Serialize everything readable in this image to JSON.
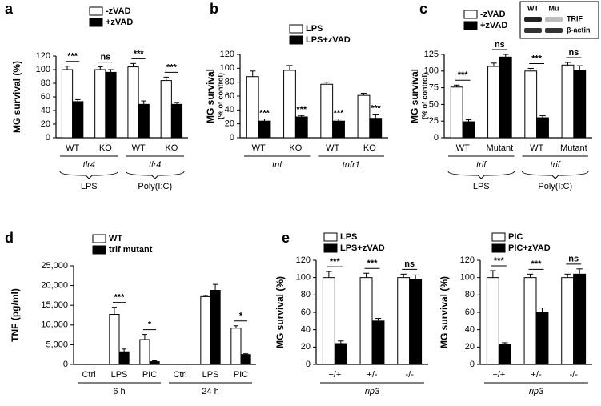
{
  "chart_data": [
    {
      "type": "bar",
      "panel": "a",
      "ylabel": "MG survival (%)",
      "ylim": [
        0,
        120
      ],
      "yticks": [
        0,
        20,
        40,
        60,
        80,
        100,
        120
      ],
      "groups": [
        {
          "name": "tlr4",
          "treatment": "LPS",
          "categories": [
            "WT",
            "KO"
          ]
        },
        {
          "name": "tlr4",
          "treatment": "Poly(I:C)",
          "categories": [
            "WT",
            "KO"
          ]
        }
      ],
      "group_italic": true,
      "series": [
        {
          "name": "-zVAD",
          "color": "#ffffff",
          "values": [
            100,
            100,
            104,
            84
          ],
          "errors": [
            5,
            4,
            5,
            5
          ]
        },
        {
          "name": "+zVAD",
          "color": "#000000",
          "values": [
            53,
            96,
            49,
            49
          ],
          "errors": [
            3,
            4,
            5,
            3
          ]
        }
      ],
      "significance": [
        "***",
        "ns",
        "***",
        "***"
      ],
      "significance_line": true
    },
    {
      "type": "bar",
      "panel": "b",
      "ylabel": "MG survival",
      "ylabel_note": "(% of control)",
      "ylim": [
        0,
        120
      ],
      "yticks": [
        0,
        20,
        40,
        60,
        80,
        100,
        120
      ],
      "groups": [
        {
          "name": "tnf",
          "categories": [
            "WT",
            "KO"
          ]
        },
        {
          "name": "tnfr1",
          "categories": [
            "WT",
            "KO"
          ]
        }
      ],
      "group_italic": true,
      "series": [
        {
          "name": "LPS",
          "color": "#ffffff",
          "values": [
            88,
            97,
            77,
            61
          ],
          "errors": [
            8,
            7,
            3,
            3
          ]
        },
        {
          "name": "LPS+zVAD",
          "color": "#000000",
          "values": [
            24,
            30,
            24,
            28
          ],
          "errors": [
            3,
            2,
            3,
            6
          ]
        }
      ],
      "significance": [
        "***",
        "***",
        "***",
        "***"
      ],
      "significance_line": false
    },
    {
      "type": "bar",
      "panel": "c",
      "ylabel": "MG survival",
      "ylabel_note": "(% of control)",
      "ylim": [
        0,
        125
      ],
      "yticks": [
        0,
        25,
        50,
        75,
        100,
        125
      ],
      "groups": [
        {
          "name": "trif",
          "treatment": "LPS",
          "categories": [
            "WT",
            "Mutant"
          ]
        },
        {
          "name": "trif",
          "treatment": "Poly(I:C)",
          "categories": [
            "WT",
            "Mutant"
          ]
        }
      ],
      "group_italic": true,
      "series": [
        {
          "name": "-zVAD",
          "color": "#ffffff",
          "values": [
            76,
            107,
            100,
            109
          ],
          "errors": [
            3,
            5,
            4,
            4
          ]
        },
        {
          "name": "+zVAD",
          "color": "#000000",
          "values": [
            24,
            121,
            30,
            101
          ],
          "errors": [
            3,
            4,
            3,
            7
          ]
        }
      ],
      "significance": [
        "***",
        "ns",
        "***",
        "ns"
      ],
      "significance_line": true,
      "inset": {
        "lanes": [
          "WT",
          "Mu"
        ],
        "rows": [
          "TRIF",
          "β-actin"
        ]
      }
    },
    {
      "type": "bar",
      "panel": "d",
      "ylabel": "TNF (pg/ml)",
      "ylim": [
        0,
        25000
      ],
      "yticks": [
        0,
        {
          "value": 5000,
          "label": "5,000"
        },
        {
          "value": 10000,
          "label": "10,000"
        },
        {
          "value": 15000,
          "label": "15,000"
        },
        {
          "value": 20000,
          "label": "20,000"
        },
        {
          "value": 25000,
          "label": "25,000"
        }
      ],
      "groups": [
        {
          "name": "6 h",
          "categories": [
            "Ctrl",
            "LPS",
            "PIC"
          ]
        },
        {
          "name": "24 h",
          "categories": [
            "Ctrl",
            "LPS",
            "PIC"
          ]
        }
      ],
      "group_italic": false,
      "series": [
        {
          "name": "WT",
          "color": "#ffffff",
          "values": [
            0,
            12700,
            6300,
            0,
            17200,
            9200
          ],
          "errors": [
            0,
            1800,
            1300,
            0,
            300,
            600
          ]
        },
        {
          "name": "trif mutant",
          "color": "#000000",
          "values": [
            0,
            3200,
            700,
            0,
            18800,
            2500
          ],
          "errors": [
            0,
            700,
            200,
            0,
            1500,
            200
          ]
        }
      ],
      "significance": [
        null,
        "***",
        "*",
        null,
        null,
        "*"
      ],
      "significance_line": true
    },
    {
      "type": "bar",
      "panel": "e",
      "ylabel": "MG survival (%)",
      "ylim": [
        0,
        120
      ],
      "yticks": [
        0,
        20,
        40,
        60,
        80,
        100,
        120
      ],
      "groups": [
        {
          "name": "rip3",
          "categories": [
            "+/+",
            "+/-",
            "-/-"
          ]
        }
      ],
      "group_italic": true,
      "series": [
        {
          "name": "LPS",
          "color": "#ffffff",
          "values": [
            100,
            100,
            100
          ],
          "errors": [
            7,
            5,
            4
          ]
        },
        {
          "name": "LPS+zVAD",
          "color": "#000000",
          "values": [
            24,
            50,
            98
          ],
          "errors": [
            3,
            3,
            5
          ]
        }
      ],
      "significance": [
        "***",
        "***",
        "ns"
      ],
      "significance_line": true
    },
    {
      "type": "bar",
      "ylabel": "MG survival (%)",
      "ylim": [
        0,
        120
      ],
      "yticks": [
        0,
        20,
        40,
        60,
        80,
        100,
        120
      ],
      "groups": [
        {
          "name": "rip3",
          "categories": [
            "+/+",
            "+/-",
            "-/-"
          ]
        }
      ],
      "group_italic": true,
      "series": [
        {
          "name": "PIC",
          "color": "#ffffff",
          "values": [
            100,
            100,
            100
          ],
          "errors": [
            8,
            4,
            4
          ]
        },
        {
          "name": "PIC+zVAD",
          "color": "#000000",
          "values": [
            23,
            60,
            104
          ],
          "errors": [
            2,
            5,
            6
          ]
        }
      ],
      "significance": [
        "***",
        "***",
        "ns"
      ],
      "significance_line": true
    }
  ]
}
